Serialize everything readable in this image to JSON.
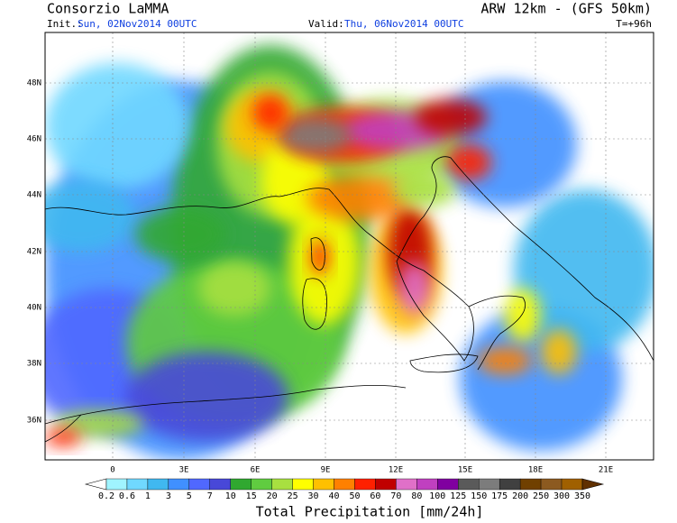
{
  "header": {
    "title": "Consorzio LaMMA",
    "model": "ARW 12km - (GFS 50km)",
    "init_label": "Init.:",
    "init": "Sun, 02Nov2014 00UTC",
    "valid_label": "Valid:",
    "valid": "Thu, 06Nov2014 00UTC",
    "lead": "T=+96h"
  },
  "map": {
    "lat_labels": [
      "48N",
      "46N",
      "44N",
      "42N",
      "40N",
      "38N",
      "36N"
    ],
    "lon_labels": [
      "0",
      "3E",
      "6E",
      "9E",
      "12E",
      "15E",
      "18E",
      "21E"
    ]
  },
  "legend": {
    "title": "Total Precipitation [mm/24h]",
    "levels": [
      0.2,
      0.6,
      1,
      3,
      5,
      7,
      10,
      15,
      20,
      25,
      30,
      40,
      50,
      60,
      70,
      80,
      100,
      125,
      150,
      175,
      200,
      250,
      300,
      350
    ],
    "colors": [
      "#a0f4ff",
      "#70d8ff",
      "#40b8f0",
      "#4090ff",
      "#5068ff",
      "#4848d8",
      "#30a830",
      "#60cc40",
      "#a8e040",
      "#ffff00",
      "#ffc000",
      "#ff8000",
      "#ff2000",
      "#c00000",
      "#e070c8",
      "#c040c0",
      "#8000a0",
      "#5a5a5a",
      "#7c7c7c",
      "#404040",
      "#704000",
      "#8c5a20",
      "#a06000"
    ],
    "under_color": "#ffffff",
    "over_color": "#603000"
  }
}
